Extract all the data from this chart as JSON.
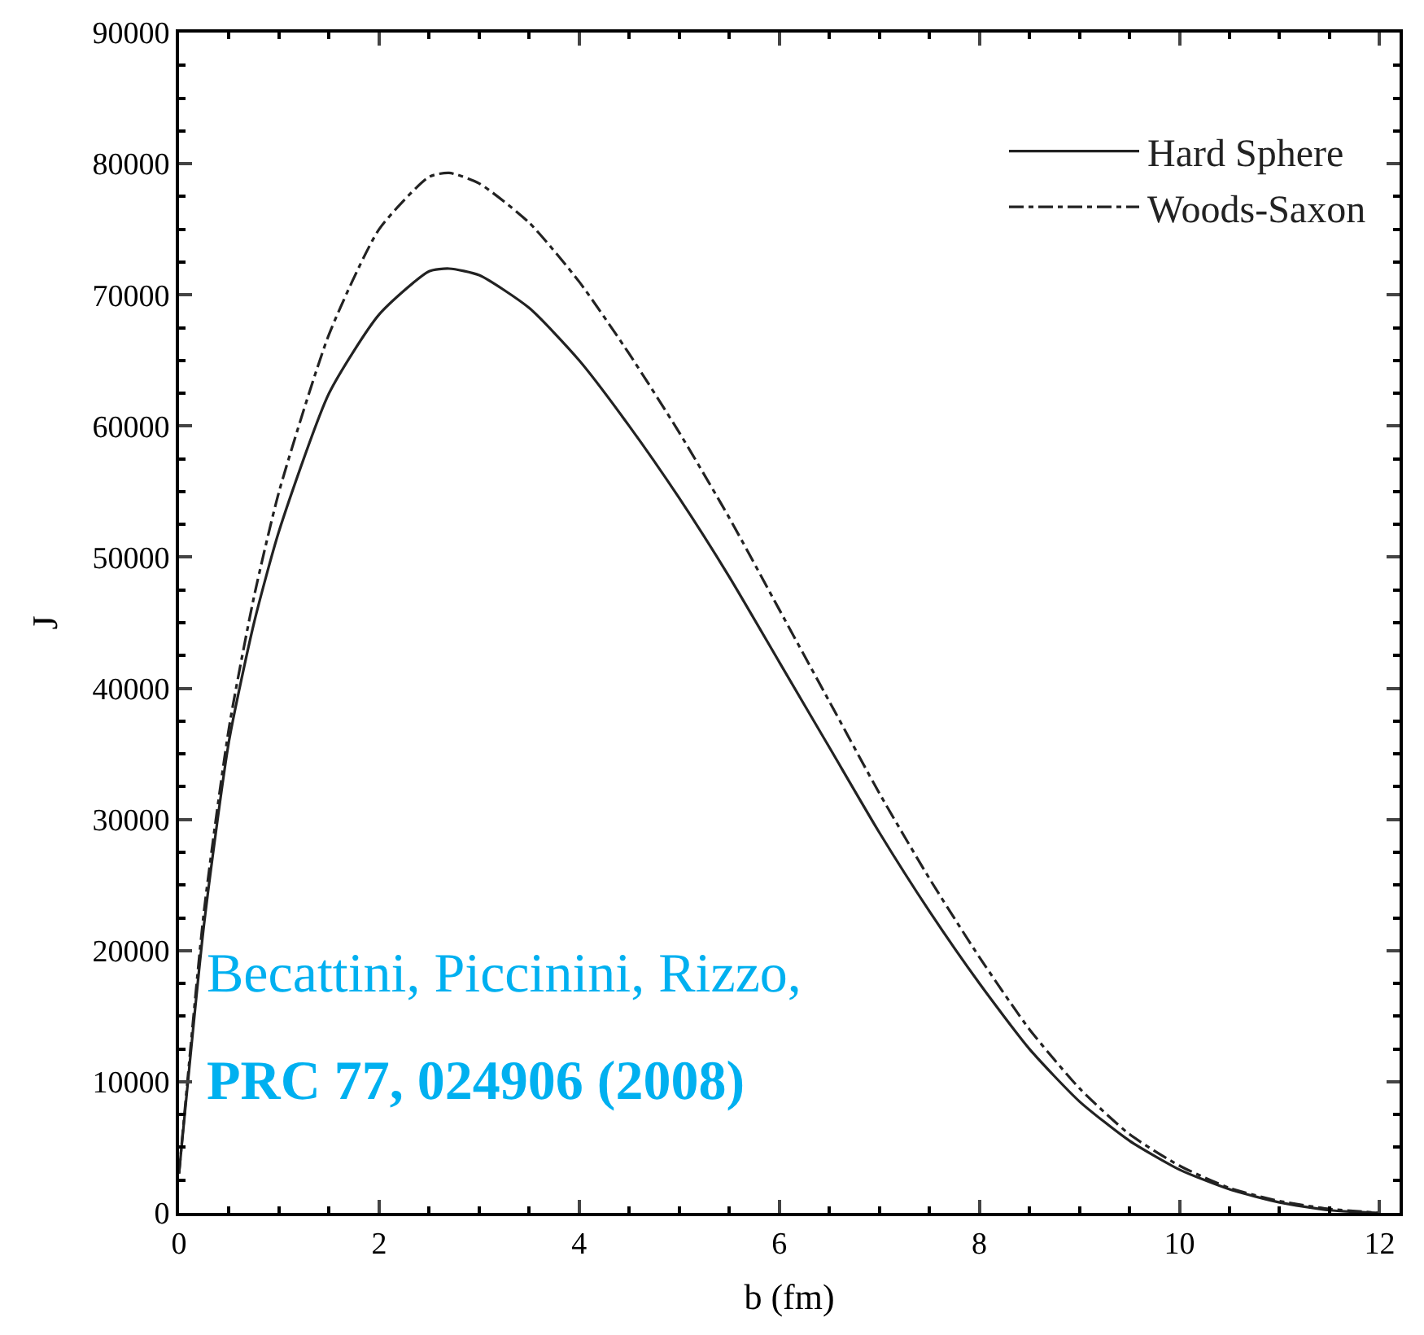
{
  "chart_data": {
    "type": "line",
    "xlabel": "b (fm)",
    "ylabel": "J",
    "xlim": [
      0,
      12.2
    ],
    "xticks": [
      0,
      2,
      4,
      6,
      8,
      10,
      12
    ],
    "ylim": [
      0,
      90000
    ],
    "yticks": [
      0,
      10000,
      20000,
      30000,
      40000,
      50000,
      60000,
      70000,
      80000,
      90000
    ],
    "legend": "top right",
    "marker": "none",
    "x": [
      0,
      0.25,
      0.5,
      0.75,
      1,
      1.5,
      2,
      2.5,
      2.7,
      3,
      3.5,
      4,
      4.5,
      5,
      5.5,
      6,
      6.5,
      7,
      7.5,
      8,
      8.5,
      9,
      9.5,
      10,
      10.5,
      11,
      11.5,
      12
    ],
    "series": [
      {
        "name": "Hard Sphere",
        "color": "#222222",
        "line_style": "solid",
        "values": [
          3000,
          22000,
          36000,
          45000,
          52000,
          62500,
          68500,
          71800,
          72000,
          71500,
          69000,
          65000,
          60000,
          54500,
          48500,
          42000,
          35500,
          29000,
          23000,
          17500,
          12500,
          8500,
          5500,
          3300,
          1800,
          800,
          200,
          0
        ]
      },
      {
        "name": "Woods-Saxon",
        "color": "#222222",
        "line_style": "dashed",
        "values": [
          3000,
          23000,
          37000,
          47000,
          55000,
          67000,
          75000,
          79000,
          79300,
          78500,
          75500,
          71000,
          65500,
          59500,
          53000,
          46000,
          39000,
          32000,
          25500,
          19500,
          14000,
          9500,
          6000,
          3600,
          1900,
          900,
          300,
          0
        ]
      }
    ],
    "annotations": [
      "Becattini, Piccinini, Rizzo,",
      "PRC 77, 024906 (2008)"
    ]
  }
}
